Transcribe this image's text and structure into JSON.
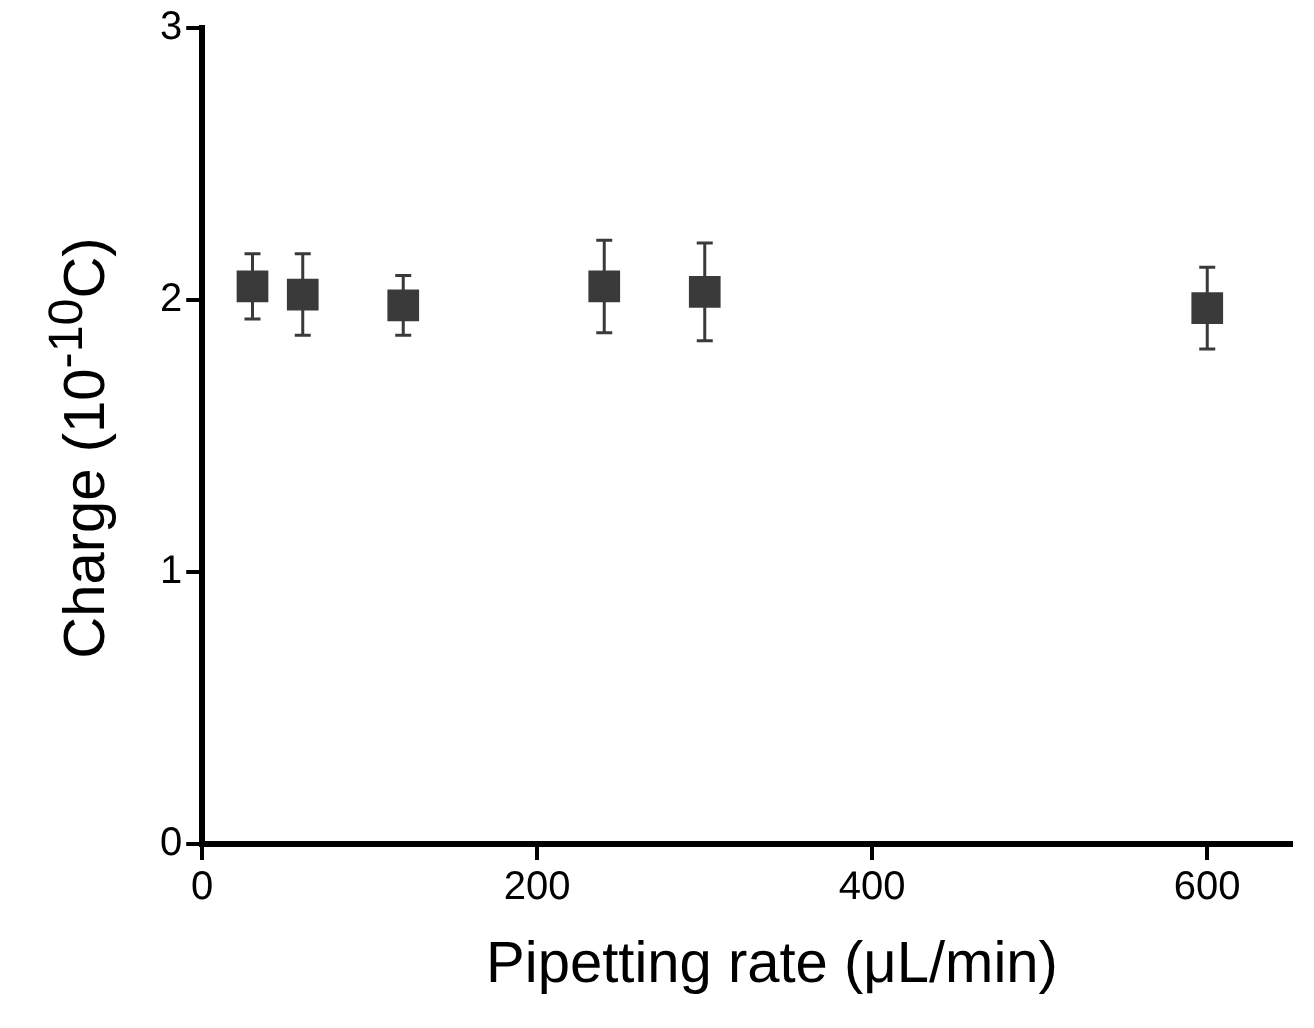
{
  "chart_data": {
    "type": "scatter",
    "xlabel": "Pipetting rate (μL/min)",
    "ylabel": "Charge (10$^{-10}$C)",
    "x": [
      30,
      60,
      120,
      240,
      300,
      600
    ],
    "values": [
      2.05,
      2.02,
      1.98,
      2.05,
      2.03,
      1.97
    ],
    "errors": [
      0.12,
      0.15,
      0.11,
      0.17,
      0.18,
      0.15
    ],
    "color": "#3a3a3a",
    "marker": "square",
    "xlim": [
      0,
      650
    ],
    "xticks": [
      0,
      200,
      400,
      600
    ],
    "ylim": [
      0,
      3
    ],
    "yticks": [
      0,
      1,
      2,
      3
    ],
    "grid": false,
    "legend": false
  }
}
